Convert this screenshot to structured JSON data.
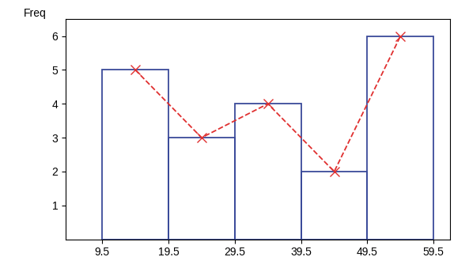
{
  "chart_data": {
    "type": "histogram",
    "y_label": "Freq",
    "bins": [
      9.5,
      19.5,
      29.5,
      39.5,
      49.5,
      59.5
    ],
    "series": [
      {
        "type": "bar",
        "color": "#3a4a9a",
        "values": [
          5,
          3,
          4,
          2,
          6
        ]
      },
      {
        "type": "line",
        "color": "#e03030",
        "line_style": "dashed",
        "marker": "x",
        "values": [
          5,
          3,
          4,
          2,
          6
        ]
      }
    ],
    "xlim": [
      4,
      62
    ],
    "xticks": [
      9.5,
      19.5,
      29.5,
      39.5,
      49.5,
      59.5
    ],
    "ylim": [
      0,
      6.5
    ],
    "yticks": [
      1,
      2,
      3,
      4,
      5,
      6
    ],
    "grid": false
  }
}
